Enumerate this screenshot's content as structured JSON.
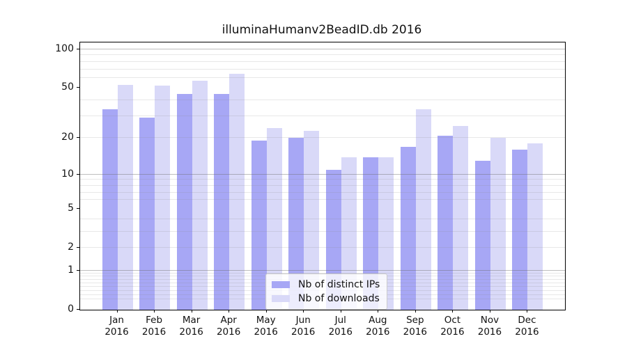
{
  "chart_data": {
    "type": "bar",
    "title": "illuminaHumanv2BeadID.db 2016",
    "scale": "log10(1+x)",
    "year_label": "2016",
    "categories": [
      "Jan",
      "Feb",
      "Mar",
      "Apr",
      "May",
      "Jun",
      "Jul",
      "Aug",
      "Sep",
      "Oct",
      "Nov",
      "Dec"
    ],
    "series": [
      {
        "name": "Nb of distinct IPs",
        "color": "#a7a7f5",
        "values": [
          34,
          29,
          45,
          45,
          19,
          20,
          11,
          14,
          17,
          21,
          13,
          16
        ]
      },
      {
        "name": "Nb of downloads",
        "color": "#d9d9f8",
        "values": [
          53,
          52,
          57,
          65,
          24,
          23,
          14,
          14,
          34,
          25,
          20,
          18
        ]
      }
    ],
    "yticks": [
      0,
      1,
      2,
      5,
      10,
      20,
      50,
      100
    ],
    "minor_gridlines": [
      0.2,
      0.3,
      0.4,
      0.5,
      0.6,
      0.7,
      0.8,
      0.9,
      2,
      3,
      4,
      6,
      7,
      8,
      9,
      20,
      30,
      40,
      60,
      70,
      80,
      90
    ],
    "major_gridlines": [
      1,
      10,
      100
    ],
    "ylim": [
      0,
      113
    ],
    "xlabel": "",
    "ylabel": "",
    "grid": true,
    "legend_position": "lower center",
    "background_color": "#ffffff",
    "axis_color": "#000000"
  }
}
